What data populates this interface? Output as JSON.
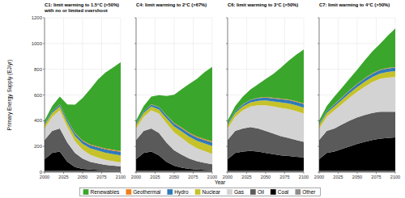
{
  "chart_data": [
    {
      "type": "area",
      "title": "C1: limit warming to 1.5°C (>50%) with no or limited overshoot",
      "y_label": "Primary Energy Supply (EJ/yr)",
      "x_label": "Year",
      "stacked": true,
      "grid": true,
      "legend": "bottom",
      "x": [
        2000,
        2010,
        2020,
        2030,
        2040,
        2050,
        2060,
        2070,
        2080,
        2090,
        2100
      ],
      "xlim": [
        2000,
        2100
      ],
      "xticks": [
        2000,
        2025,
        2050,
        2075,
        2100
      ],
      "ylim": [
        0,
        1200
      ],
      "yticks": [
        0,
        200,
        400,
        600,
        800,
        1000,
        1200
      ],
      "series": [
        {
          "name": "Other",
          "color": "#8c8c8c",
          "values": [
            10,
            10,
            10,
            10,
            10,
            10,
            10,
            10,
            10,
            10,
            10
          ]
        },
        {
          "name": "Coal",
          "color": "#000000",
          "values": [
            90,
            140,
            150,
            70,
            30,
            15,
            10,
            8,
            6,
            5,
            5
          ]
        },
        {
          "name": "Oil",
          "color": "#5a5a5a",
          "values": [
            150,
            170,
            180,
            150,
            110,
            80,
            60,
            50,
            40,
            35,
            30
          ]
        },
        {
          "name": "Gas",
          "color": "#d3d3d3",
          "values": [
            90,
            110,
            140,
            120,
            90,
            70,
            55,
            45,
            40,
            35,
            30
          ]
        },
        {
          "name": "Nuclear",
          "color": "#c5c22a",
          "values": [
            28,
            30,
            30,
            35,
            40,
            45,
            50,
            55,
            55,
            55,
            55
          ]
        },
        {
          "name": "Hydro",
          "color": "#2f7ab9",
          "values": [
            10,
            12,
            15,
            18,
            20,
            22,
            24,
            25,
            26,
            27,
            28
          ]
        },
        {
          "name": "Geothermal",
          "color": "#f07f1b",
          "values": [
            1,
            1,
            2,
            3,
            4,
            5,
            6,
            6,
            7,
            7,
            7
          ]
        },
        {
          "name": "Renewables",
          "color": "#3aa62c",
          "values": [
            21,
            40,
            60,
            120,
            220,
            330,
            430,
            520,
            590,
            640,
            690
          ]
        }
      ]
    },
    {
      "type": "area",
      "title": "C4: limit warming to 2°C (>67%)",
      "stacked": true,
      "grid": true,
      "tick_labels": "x",
      "x": [
        2000,
        2010,
        2020,
        2030,
        2040,
        2050,
        2060,
        2070,
        2080,
        2090,
        2100
      ],
      "xlim": [
        2000,
        2100
      ],
      "xticks": [
        2000,
        2025,
        2050,
        2075,
        2100
      ],
      "ylim": [
        0,
        1200
      ],
      "yticks": [
        0,
        200,
        400,
        600,
        800,
        1000,
        1200
      ],
      "series": [
        {
          "name": "Other",
          "color": "#8c8c8c",
          "values": [
            10,
            10,
            10,
            10,
            10,
            10,
            10,
            10,
            10,
            10,
            10
          ]
        },
        {
          "name": "Coal",
          "color": "#000000",
          "values": [
            90,
            140,
            150,
            120,
            70,
            40,
            25,
            15,
            10,
            8,
            6
          ]
        },
        {
          "name": "Oil",
          "color": "#5a5a5a",
          "values": [
            150,
            170,
            180,
            175,
            150,
            120,
            100,
            80,
            65,
            55,
            45
          ]
        },
        {
          "name": "Gas",
          "color": "#d3d3d3",
          "values": [
            90,
            110,
            140,
            150,
            150,
            140,
            130,
            115,
            100,
            90,
            80
          ]
        },
        {
          "name": "Nuclear",
          "color": "#c5c22a",
          "values": [
            28,
            30,
            30,
            32,
            38,
            45,
            50,
            55,
            58,
            60,
            62
          ]
        },
        {
          "name": "Hydro",
          "color": "#2f7ab9",
          "values": [
            10,
            12,
            15,
            18,
            20,
            22,
            24,
            25,
            26,
            27,
            28
          ]
        },
        {
          "name": "Geothermal",
          "color": "#f07f1b",
          "values": [
            1,
            1,
            2,
            3,
            4,
            5,
            6,
            6,
            7,
            7,
            7
          ]
        },
        {
          "name": "Renewables",
          "color": "#3aa62c",
          "values": [
            21,
            40,
            60,
            90,
            150,
            220,
            300,
            380,
            450,
            520,
            580
          ]
        }
      ]
    },
    {
      "type": "area",
      "title": "C6: limit warming to 3°C (>50%)",
      "stacked": true,
      "grid": true,
      "tick_labels": "x",
      "x": [
        2000,
        2010,
        2020,
        2030,
        2040,
        2050,
        2060,
        2070,
        2080,
        2090,
        2100
      ],
      "xlim": [
        2000,
        2100
      ],
      "xticks": [
        2000,
        2025,
        2050,
        2075,
        2100
      ],
      "ylim": [
        0,
        1200
      ],
      "yticks": [
        0,
        200,
        400,
        600,
        800,
        1000,
        1200
      ],
      "series": [
        {
          "name": "Other",
          "color": "#8c8c8c",
          "values": [
            10,
            10,
            10,
            10,
            10,
            10,
            10,
            10,
            10,
            10,
            10
          ]
        },
        {
          "name": "Coal",
          "color": "#000000",
          "values": [
            90,
            140,
            150,
            155,
            150,
            140,
            130,
            120,
            115,
            110,
            105
          ]
        },
        {
          "name": "Oil",
          "color": "#5a5a5a",
          "values": [
            150,
            170,
            180,
            185,
            180,
            170,
            160,
            150,
            140,
            130,
            120
          ]
        },
        {
          "name": "Gas",
          "color": "#d3d3d3",
          "values": [
            90,
            110,
            140,
            160,
            180,
            200,
            210,
            220,
            225,
            225,
            220
          ]
        },
        {
          "name": "Nuclear",
          "color": "#c5c22a",
          "values": [
            28,
            30,
            30,
            32,
            35,
            38,
            40,
            42,
            44,
            45,
            46
          ]
        },
        {
          "name": "Hydro",
          "color": "#2f7ab9",
          "values": [
            10,
            12,
            15,
            18,
            20,
            22,
            24,
            25,
            26,
            27,
            28
          ]
        },
        {
          "name": "Geothermal",
          "color": "#f07f1b",
          "values": [
            1,
            1,
            2,
            3,
            3,
            4,
            4,
            5,
            5,
            5,
            5
          ]
        },
        {
          "name": "Renewables",
          "color": "#3aa62c",
          "values": [
            21,
            40,
            60,
            80,
            105,
            140,
            185,
            240,
            300,
            360,
            420
          ]
        }
      ]
    },
    {
      "type": "area",
      "title": "C7: limit warming to 4°C (>50%)",
      "stacked": true,
      "grid": true,
      "tick_labels": "x",
      "x": [
        2000,
        2010,
        2020,
        2030,
        2040,
        2050,
        2060,
        2070,
        2080,
        2090,
        2100
      ],
      "xlim": [
        2000,
        2100
      ],
      "xticks": [
        2000,
        2025,
        2050,
        2075,
        2100
      ],
      "ylim": [
        0,
        1200
      ],
      "yticks": [
        0,
        200,
        400,
        600,
        800,
        1000,
        1200
      ],
      "series": [
        {
          "name": "Other",
          "color": "#8c8c8c",
          "values": [
            10,
            10,
            10,
            10,
            10,
            10,
            10,
            10,
            10,
            10,
            10
          ]
        },
        {
          "name": "Coal",
          "color": "#000000",
          "values": [
            90,
            140,
            150,
            170,
            190,
            210,
            225,
            240,
            250,
            255,
            260
          ]
        },
        {
          "name": "Oil",
          "color": "#5a5a5a",
          "values": [
            150,
            170,
            180,
            190,
            200,
            205,
            210,
            210,
            210,
            205,
            200
          ]
        },
        {
          "name": "Gas",
          "color": "#d3d3d3",
          "values": [
            90,
            110,
            140,
            160,
            180,
            200,
            220,
            240,
            255,
            265,
            270
          ]
        },
        {
          "name": "Nuclear",
          "color": "#c5c22a",
          "values": [
            28,
            30,
            30,
            32,
            34,
            36,
            38,
            40,
            42,
            44,
            45
          ]
        },
        {
          "name": "Hydro",
          "color": "#2f7ab9",
          "values": [
            10,
            12,
            15,
            18,
            20,
            22,
            24,
            25,
            26,
            27,
            28
          ]
        },
        {
          "name": "Geothermal",
          "color": "#f07f1b",
          "values": [
            1,
            1,
            2,
            2,
            3,
            3,
            3,
            4,
            4,
            4,
            4
          ]
        },
        {
          "name": "Renewables",
          "color": "#3aa62c",
          "values": [
            21,
            40,
            60,
            75,
            90,
            110,
            140,
            170,
            200,
            250,
            300
          ]
        }
      ]
    }
  ]
}
